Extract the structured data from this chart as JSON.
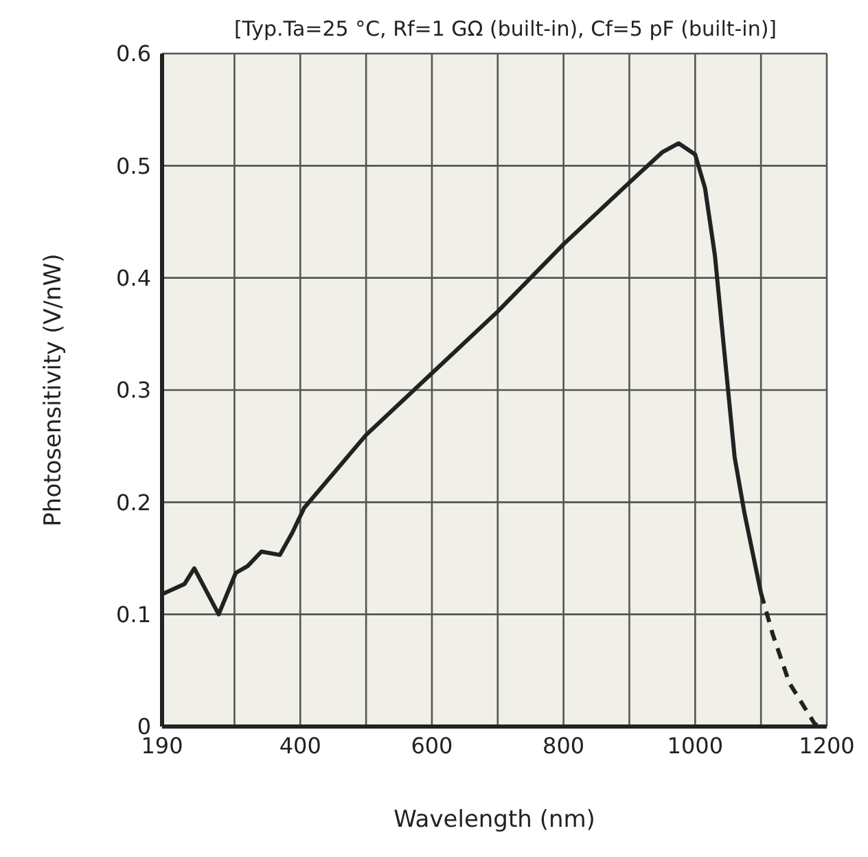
{
  "chart_data": {
    "type": "line",
    "title": "[Typ.Ta=25 °C, Rf=1 GΩ (built-in), Cf=5 pF (built-in)]",
    "xlabel": "Wavelength (nm)",
    "ylabel": "Photosensitivity (V/nW)",
    "xlim": [
      190,
      1200
    ],
    "xticks": [
      190,
      {
        "value": 300,
        "label": null
      },
      400,
      {
        "value": 500,
        "label": null
      },
      600,
      {
        "value": 700,
        "label": null
      },
      800,
      {
        "value": 900,
        "label": null
      },
      1000,
      {
        "value": 1100,
        "label": null
      },
      1200
    ],
    "ylim": [
      0,
      0.6
    ],
    "yticks": [
      0,
      0.1,
      0.2,
      0.3,
      0.4,
      0.5,
      0.6
    ],
    "grid": true,
    "series": [
      {
        "color": "#222222",
        "line_style": "solid",
        "x": [
          190,
          224,
          239,
          276,
          302,
          320,
          341,
          369,
          388,
          406,
          500,
          600,
          700,
          800,
          900,
          950,
          975,
          1000,
          1015,
          1030,
          1045,
          1060,
          1075,
          1100
        ],
        "values": [
          0.118,
          0.127,
          0.141,
          0.1,
          0.137,
          0.143,
          0.156,
          0.153,
          0.173,
          0.195,
          0.26,
          0.315,
          0.37,
          0.43,
          0.485,
          0.512,
          0.52,
          0.51,
          0.48,
          0.42,
          0.33,
          0.24,
          0.19,
          0.119
        ]
      },
      {
        "color": "#222222",
        "line_style": "dashed",
        "x": [
          1100,
          1118,
          1143,
          1182,
          1195
        ],
        "values": [
          0.119,
          0.082,
          0.039,
          0.002,
          0
        ]
      }
    ]
  }
}
